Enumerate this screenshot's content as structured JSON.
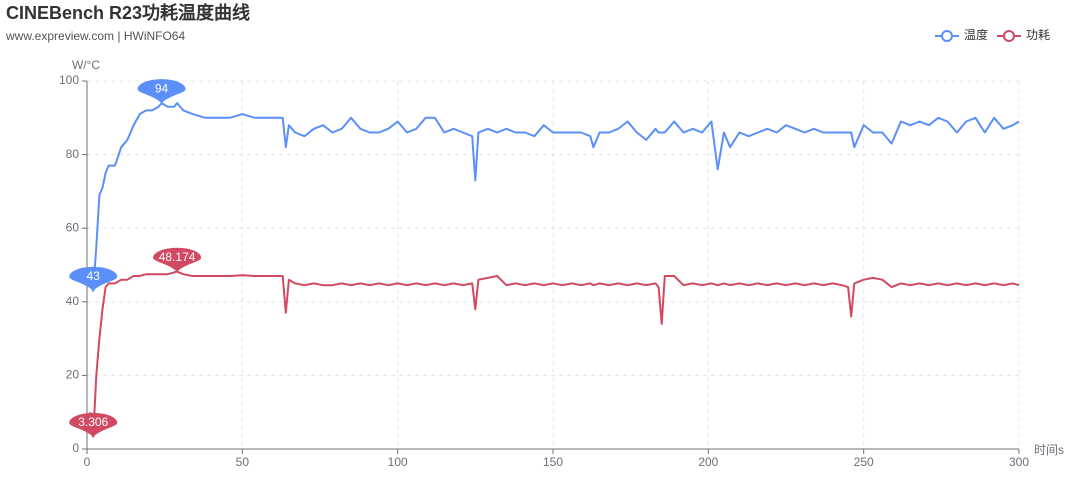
{
  "chart_data": {
    "type": "line",
    "title": "CINEBench R23功耗温度曲线",
    "subtitle": "www.expreview.com | HWiNFO64",
    "y_label": "W/°C",
    "x_label": "时间s",
    "legend": "top-right",
    "grid": true,
    "xlim": [
      0,
      300
    ],
    "xticks": [
      0,
      50,
      100,
      150,
      200,
      250,
      300
    ],
    "ylim": [
      0,
      100
    ],
    "yticks": [
      0,
      20,
      40,
      60,
      80,
      100
    ],
    "x": [
      1,
      2,
      3,
      4,
      5,
      6,
      7,
      9,
      11,
      13,
      15,
      17,
      19,
      21,
      23,
      24,
      26,
      28,
      29,
      31,
      34,
      38,
      42,
      46,
      50,
      54,
      58,
      62,
      63,
      64,
      65,
      67,
      70,
      73,
      76,
      79,
      82,
      85,
      88,
      91,
      94,
      97,
      100,
      103,
      106,
      109,
      112,
      115,
      118,
      121,
      124,
      125,
      126,
      129,
      132,
      135,
      138,
      141,
      144,
      147,
      150,
      153,
      156,
      159,
      162,
      163,
      165,
      168,
      171,
      174,
      177,
      180,
      183,
      184,
      185,
      186,
      189,
      192,
      195,
      198,
      201,
      203,
      205,
      207,
      210,
      213,
      216,
      219,
      222,
      225,
      228,
      231,
      234,
      237,
      240,
      243,
      245,
      246,
      247,
      250,
      253,
      256,
      259,
      262,
      265,
      268,
      271,
      274,
      277,
      280,
      283,
      286,
      289,
      292,
      295,
      298,
      300
    ],
    "series": [
      {
        "name": "温度",
        "color": "#5b8ff9",
        "mark_points": [
          "max",
          "min"
        ],
        "values": [
          45,
          43,
          55,
          69,
          71,
          75,
          77,
          77,
          82,
          84,
          88,
          91,
          92,
          92,
          93,
          94,
          93,
          93,
          94,
          92,
          91,
          90,
          90,
          90,
          91,
          90,
          90,
          90,
          90,
          82,
          88,
          86,
          85,
          87,
          88,
          86,
          87,
          90,
          87,
          86,
          86,
          87,
          89,
          86,
          87,
          90,
          90,
          86,
          87,
          86,
          85,
          73,
          86,
          87,
          86,
          87,
          86,
          86,
          85,
          88,
          86,
          86,
          86,
          86,
          85,
          82,
          86,
          86,
          87,
          89,
          86,
          84,
          87,
          86,
          86,
          86,
          89,
          86,
          87,
          86,
          89,
          76,
          86,
          82,
          86,
          85,
          86,
          87,
          86,
          88,
          87,
          86,
          87,
          86,
          86,
          86,
          86,
          86,
          82,
          88,
          86,
          86,
          83,
          89,
          88,
          89,
          88,
          90,
          89,
          86,
          89,
          90,
          86,
          90,
          87,
          88,
          89
        ]
      },
      {
        "name": "功耗",
        "color": "#d14a61",
        "mark_points": [
          "max",
          "min"
        ],
        "values": [
          10,
          3.306,
          20,
          30,
          38,
          44,
          45,
          45,
          46,
          46,
          47,
          47,
          47.5,
          47.5,
          47.5,
          47.5,
          47.5,
          48,
          48.174,
          47.5,
          47,
          47,
          47,
          47,
          47.2,
          47,
          47,
          47,
          47,
          37,
          46,
          45,
          44.5,
          45,
          44.5,
          44.5,
          45,
          44.5,
          45,
          44.5,
          45,
          44.5,
          45,
          44.5,
          45,
          44.5,
          45,
          44.5,
          45,
          44.5,
          45,
          38,
          46,
          46.5,
          47,
          44.5,
          45,
          44.5,
          45,
          44.5,
          45,
          44.5,
          45,
          44.5,
          45,
          44.5,
          45,
          44.5,
          45,
          44.5,
          45,
          44.5,
          45,
          44,
          34,
          47,
          47,
          44.5,
          45,
          44.5,
          45,
          44.5,
          45,
          44.5,
          45,
          44.5,
          45,
          44.5,
          45,
          44.5,
          45,
          44.5,
          45,
          44.5,
          45,
          44.5,
          44,
          36,
          45,
          46,
          46.5,
          46,
          44,
          45,
          44.5,
          45,
          44.5,
          45,
          44.5,
          45,
          44.5,
          45,
          44.5,
          45,
          44.5,
          45,
          44.5
        ]
      }
    ]
  }
}
